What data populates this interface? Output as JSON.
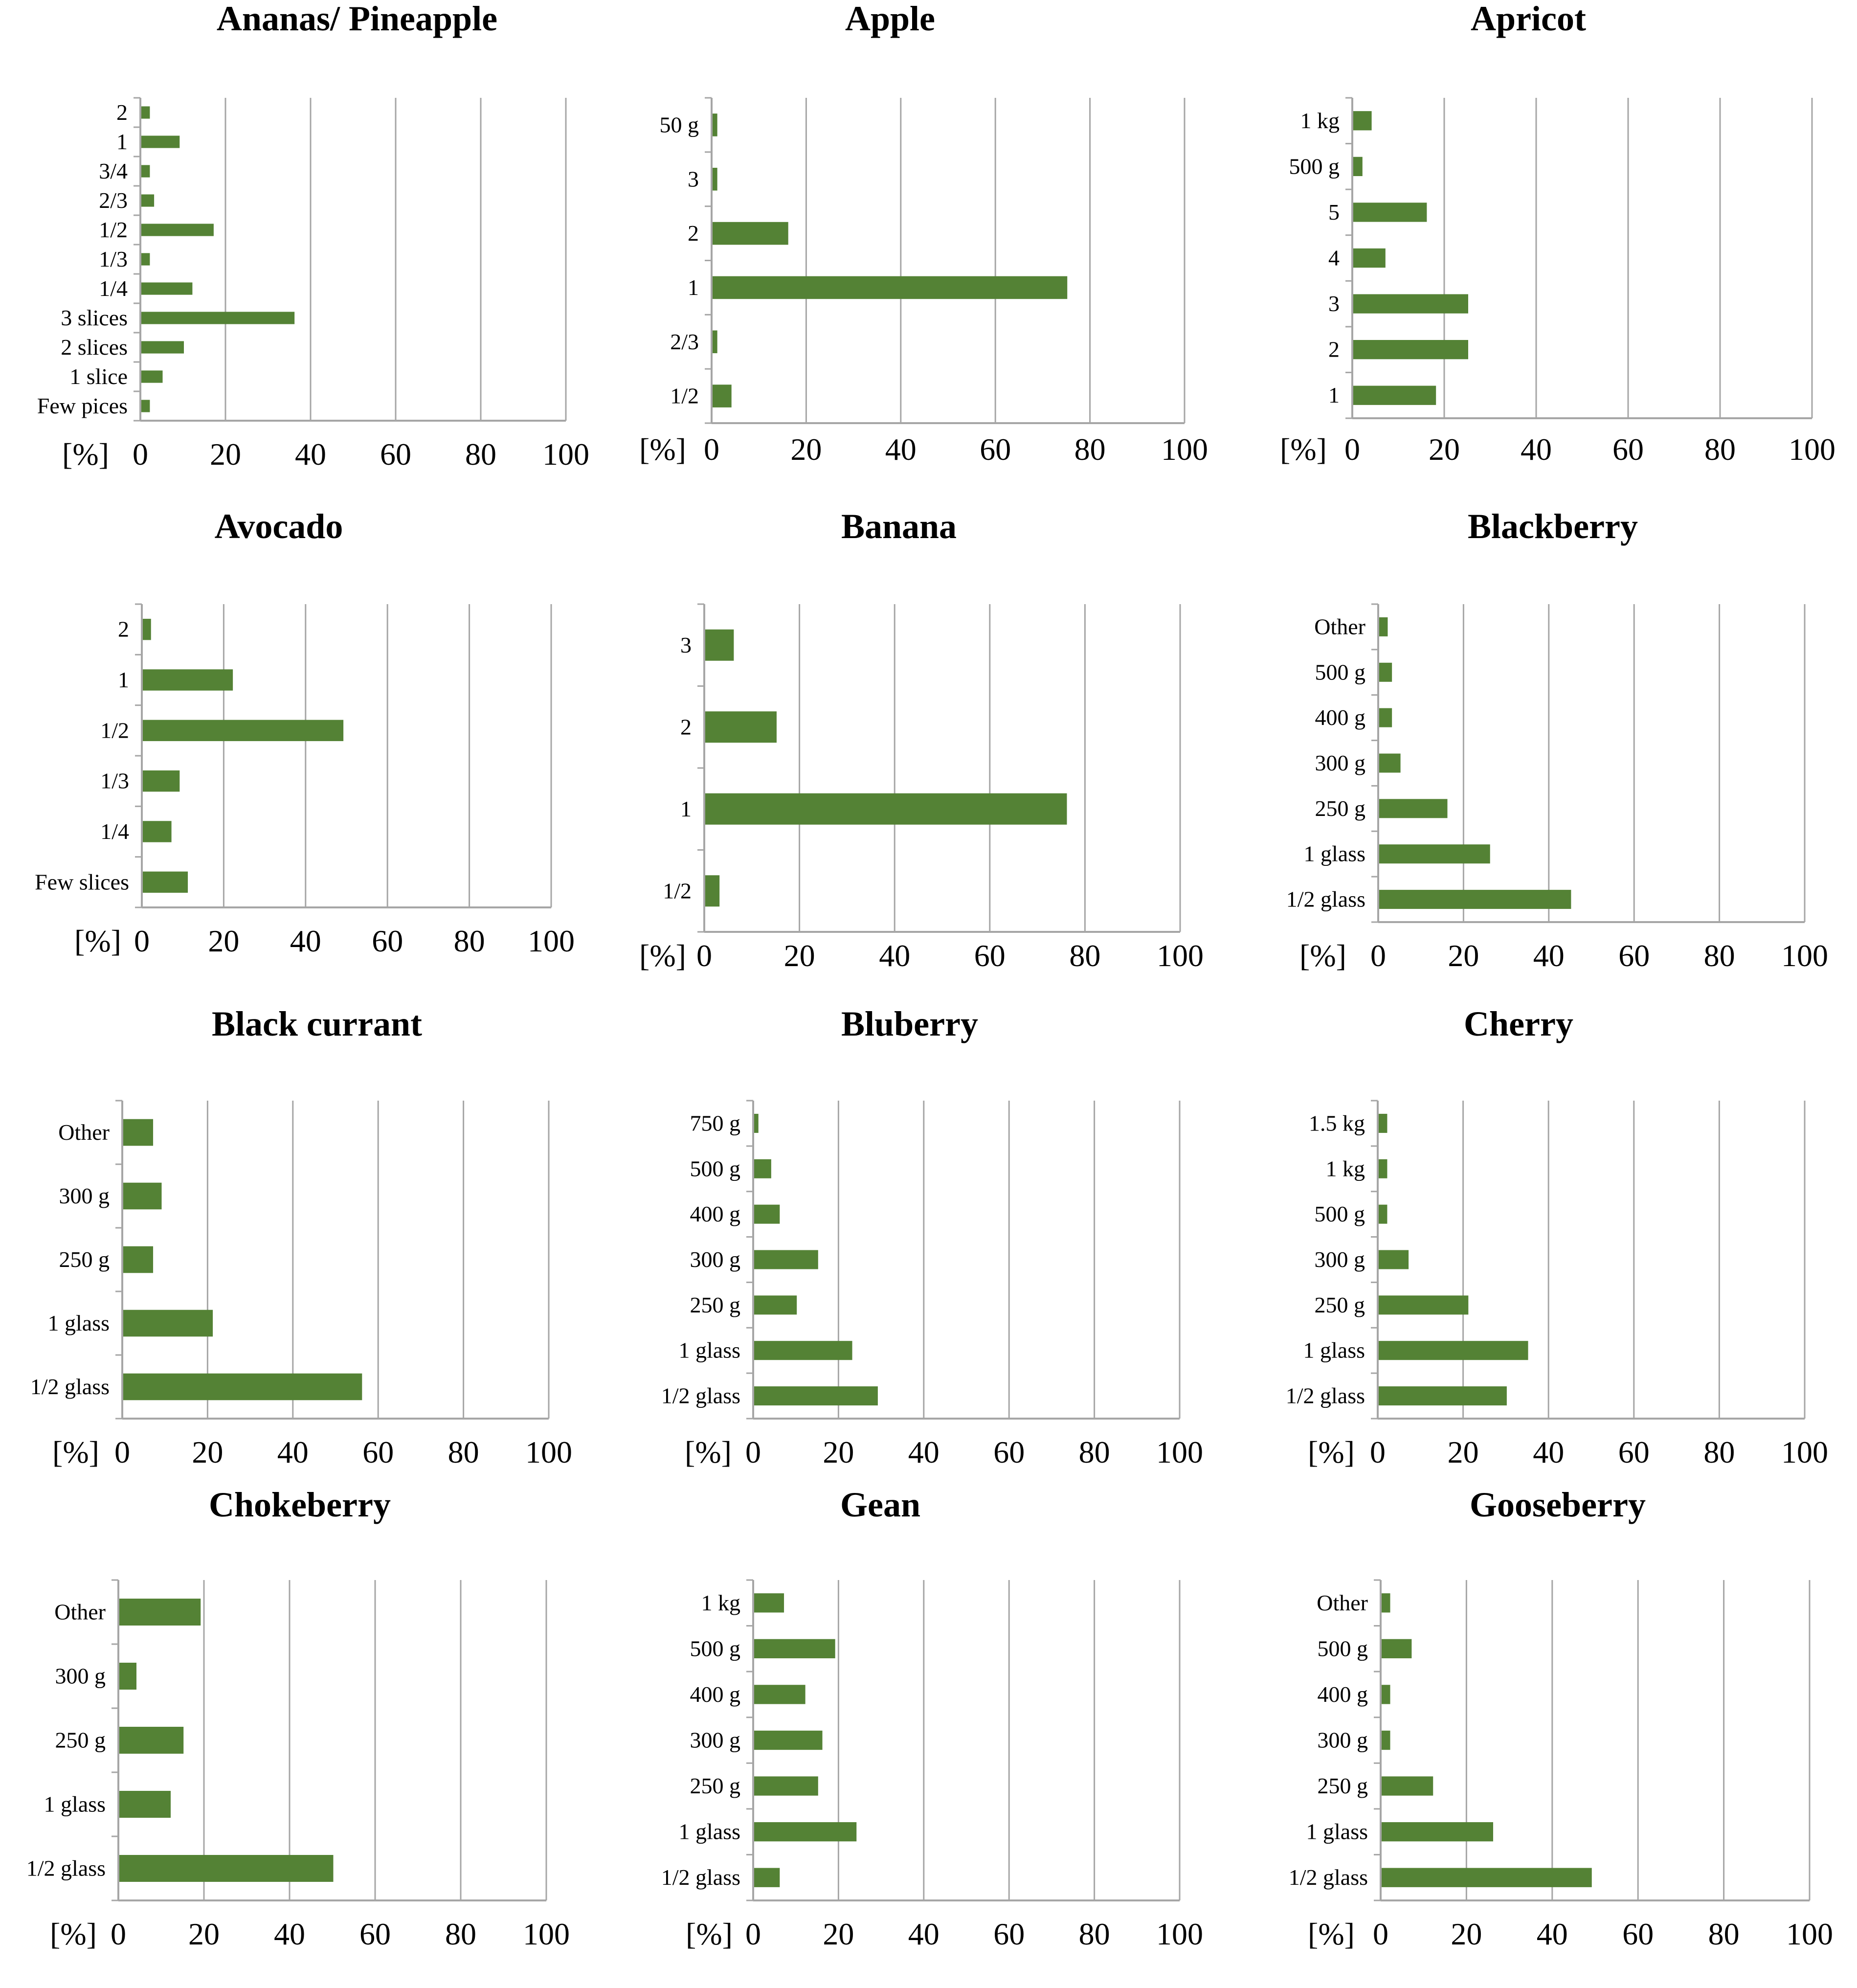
{
  "colors": {
    "bar": "#548235",
    "grid": "#a6a6a6",
    "axis": "#a6a6a6"
  },
  "chart_data": [
    {
      "type": "bar",
      "orientation": "horizontal",
      "title": "Ananas/ Pineapple",
      "xlabel": "[%]",
      "xlim": [
        0,
        100
      ],
      "xticks": [
        0,
        20,
        40,
        60,
        80,
        100
      ],
      "categories": [
        "2",
        "1",
        "3/4",
        "2/3",
        "1/2",
        "1/3",
        "1/4",
        "3 slices",
        "2 slices",
        "1 slice",
        "Few pices"
      ],
      "values": [
        2,
        9,
        2,
        3,
        17,
        2,
        12,
        36,
        10,
        5,
        2
      ]
    },
    {
      "type": "bar",
      "orientation": "horizontal",
      "title": "Apple",
      "xlabel": "[%]",
      "xlim": [
        0,
        100
      ],
      "xticks": [
        0,
        20,
        40,
        60,
        80,
        100
      ],
      "categories": [
        "50 g",
        "3",
        "2",
        "1",
        "2/3",
        "1/2"
      ],
      "values": [
        1,
        1,
        16,
        75,
        1,
        4
      ]
    },
    {
      "type": "bar",
      "orientation": "horizontal",
      "title": "Apricot",
      "xlabel": "[%]",
      "xlim": [
        0,
        100
      ],
      "xticks": [
        0,
        20,
        40,
        60,
        80,
        100
      ],
      "categories": [
        "1 kg",
        "500 g",
        "5",
        "4",
        "3",
        "2",
        "1"
      ],
      "values": [
        4,
        2,
        16,
        7,
        25,
        25,
        18
      ]
    },
    {
      "type": "bar",
      "orientation": "horizontal",
      "title": "Avocado",
      "xlabel": "[%]",
      "xlim": [
        0,
        100
      ],
      "xticks": [
        0,
        20,
        40,
        60,
        80,
        100
      ],
      "categories": [
        "2",
        "1",
        "1/2",
        "1/3",
        "1/4",
        "Few slices"
      ],
      "values": [
        2,
        22,
        49,
        9,
        7,
        11
      ]
    },
    {
      "type": "bar",
      "orientation": "horizontal",
      "title": "Banana",
      "xlabel": "[%]",
      "xlim": [
        0,
        100
      ],
      "xticks": [
        0,
        20,
        40,
        60,
        80,
        100
      ],
      "categories": [
        "3",
        "2",
        "1",
        "1/2"
      ],
      "values": [
        6,
        15,
        76,
        3
      ]
    },
    {
      "type": "bar",
      "orientation": "horizontal",
      "title": "Blackberry",
      "xlabel": "[%]",
      "xlim": [
        0,
        100
      ],
      "xticks": [
        0,
        20,
        40,
        60,
        80,
        100
      ],
      "categories": [
        "Other",
        "500 g",
        "400 g",
        "300 g",
        "250 g",
        "1 glass",
        "1/2 glass"
      ],
      "values": [
        2,
        3,
        3,
        5,
        16,
        26,
        45
      ]
    },
    {
      "type": "bar",
      "orientation": "horizontal",
      "title": "Black currant",
      "xlabel": "[%]",
      "xlim": [
        0,
        100
      ],
      "xticks": [
        0,
        20,
        40,
        60,
        80,
        100
      ],
      "categories": [
        "Other",
        "300 g",
        "250 g",
        "1 glass",
        "1/2 glass"
      ],
      "values": [
        7,
        9,
        7,
        21,
        56
      ]
    },
    {
      "type": "bar",
      "orientation": "horizontal",
      "title": "Bluberry",
      "xlabel": "[%]",
      "xlim": [
        0,
        100
      ],
      "xticks": [
        0,
        20,
        40,
        60,
        80,
        100
      ],
      "categories": [
        "750 g",
        "500 g",
        "400 g",
        "300 g",
        "250 g",
        "1 glass",
        "1/2 glass"
      ],
      "values": [
        1,
        4,
        6,
        15,
        10,
        23,
        29
      ]
    },
    {
      "type": "bar",
      "orientation": "horizontal",
      "title": "Cherry",
      "xlabel": "[%]",
      "xlim": [
        0,
        100
      ],
      "xticks": [
        0,
        20,
        40,
        60,
        80,
        100
      ],
      "categories": [
        "1.5 kg",
        "1 kg",
        "500 g",
        "300 g",
        "250 g",
        "1 glass",
        "1/2 glass"
      ],
      "values": [
        2,
        2,
        2,
        7,
        21,
        35,
        30
      ]
    },
    {
      "type": "bar",
      "orientation": "horizontal",
      "title": "Chokeberry",
      "xlabel": "[%]",
      "xlim": [
        0,
        100
      ],
      "xticks": [
        0,
        20,
        40,
        60,
        80,
        100
      ],
      "categories": [
        "Other",
        "300 g",
        "250 g",
        "1 glass",
        "1/2 glass"
      ],
      "values": [
        19,
        4,
        15,
        12,
        50
      ]
    },
    {
      "type": "bar",
      "orientation": "horizontal",
      "title": "Gean",
      "xlabel": "[%]",
      "xlim": [
        0,
        100
      ],
      "xticks": [
        0,
        20,
        40,
        60,
        80,
        100
      ],
      "categories": [
        "1 kg",
        "500 g",
        "400 g",
        "300 g",
        "250 g",
        "1 glass",
        "1/2 glass"
      ],
      "values": [
        7,
        19,
        12,
        16,
        15,
        24,
        6
      ]
    },
    {
      "type": "bar",
      "orientation": "horizontal",
      "title": "Gooseberry",
      "xlabel": "[%]",
      "xlim": [
        0,
        100
      ],
      "xticks": [
        0,
        20,
        40,
        60,
        80,
        100
      ],
      "categories": [
        "Other",
        "500 g",
        "400 g",
        "300 g",
        "250 g",
        "1 glass",
        "1/2 glass"
      ],
      "values": [
        2,
        7,
        2,
        2,
        12,
        26,
        49
      ]
    }
  ]
}
